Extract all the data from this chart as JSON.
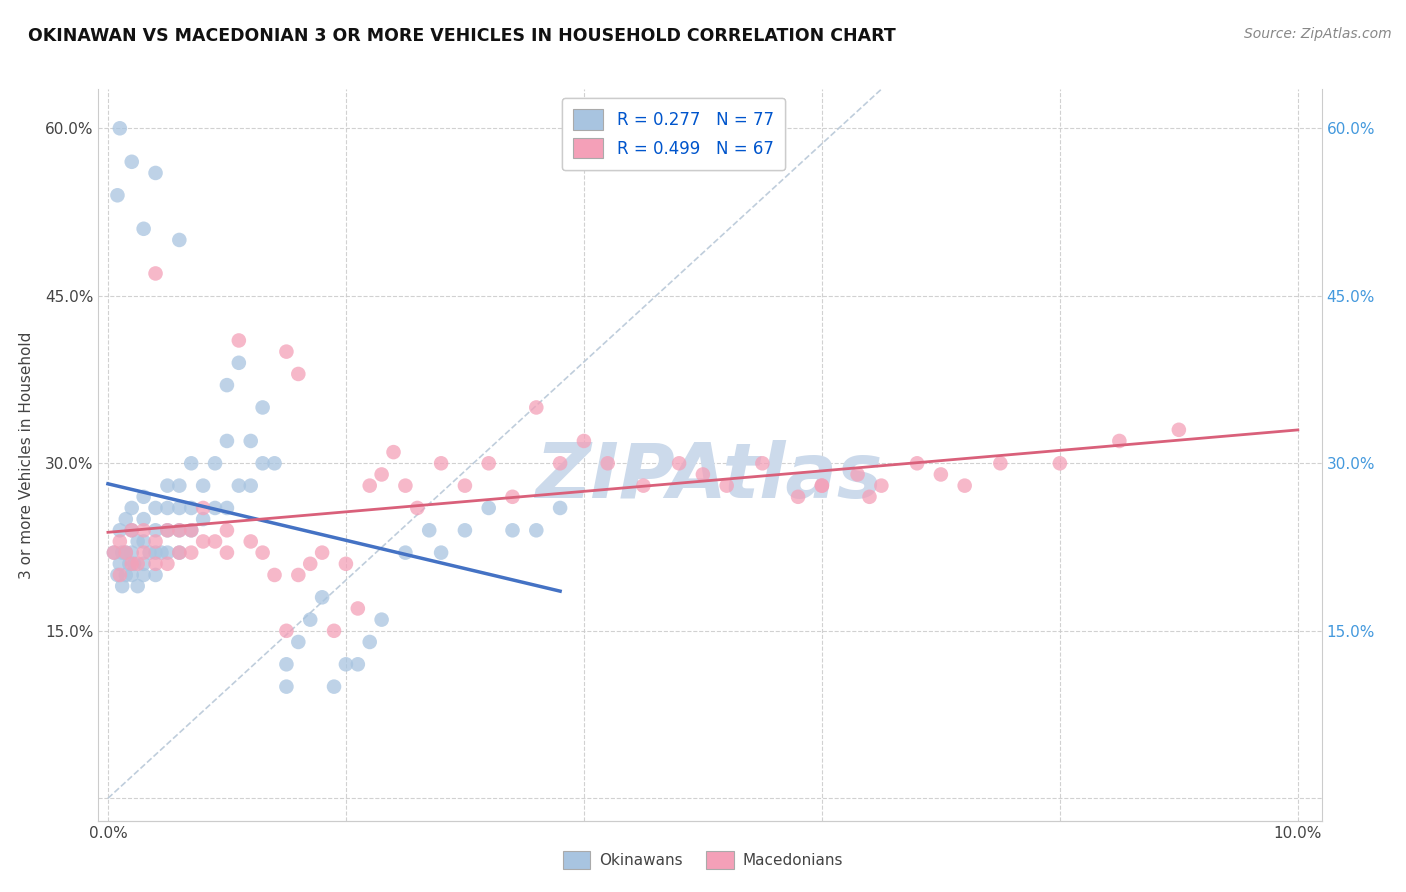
{
  "title": "OKINAWAN VS MACEDONIAN 3 OR MORE VEHICLES IN HOUSEHOLD CORRELATION CHART",
  "source": "Source: ZipAtlas.com",
  "xlim": [
    -0.0008,
    0.102
  ],
  "ylim": [
    -0.02,
    0.635
  ],
  "x_ticks": [
    0.0,
    0.02,
    0.04,
    0.06,
    0.08,
    0.1
  ],
  "x_tick_labels": [
    "0.0%",
    "",
    "",
    "",
    "",
    "10.0%"
  ],
  "y_ticks": [
    0.0,
    0.15,
    0.3,
    0.45,
    0.6
  ],
  "y_tick_labels_left": [
    "",
    "15.0%",
    "30.0%",
    "45.0%",
    "60.0%"
  ],
  "y_tick_labels_right": [
    "",
    "15.0%",
    "30.0%",
    "45.0%",
    "60.0%"
  ],
  "okinawan_color": "#a8c4e0",
  "macedonian_color": "#f4a0b8",
  "okinawan_line_color": "#4472c4",
  "macedonian_line_color": "#d9607a",
  "diagonal_color": "#b8c8d8",
  "watermark_color": "#ccdaeb",
  "ylabel": "3 or more Vehicles in Household",
  "legend_label1": "R = 0.277   N = 77",
  "legend_label2": "R = 0.499   N = 67",
  "bottom_legend_okinawans": "Okinawans",
  "bottom_legend_macedonians": "Macedonians",
  "okinawan_x": [
    0.0005,
    0.0008,
    0.001,
    0.001,
    0.0012,
    0.0012,
    0.0015,
    0.0015,
    0.0015,
    0.0018,
    0.002,
    0.002,
    0.002,
    0.002,
    0.0022,
    0.0025,
    0.0025,
    0.003,
    0.003,
    0.003,
    0.003,
    0.003,
    0.0035,
    0.004,
    0.004,
    0.004,
    0.004,
    0.0045,
    0.005,
    0.005,
    0.005,
    0.005,
    0.006,
    0.006,
    0.006,
    0.006,
    0.007,
    0.007,
    0.007,
    0.008,
    0.008,
    0.009,
    0.009,
    0.01,
    0.01,
    0.011,
    0.012,
    0.012,
    0.013,
    0.014,
    0.015,
    0.015,
    0.016,
    0.017,
    0.018,
    0.019,
    0.02,
    0.021,
    0.022,
    0.023,
    0.025,
    0.027,
    0.028,
    0.03,
    0.032,
    0.034,
    0.036,
    0.038,
    0.01,
    0.011,
    0.013,
    0.006,
    0.004,
    0.003,
    0.002,
    0.001,
    0.0008
  ],
  "okinawan_y": [
    0.22,
    0.2,
    0.21,
    0.24,
    0.19,
    0.22,
    0.2,
    0.22,
    0.25,
    0.21,
    0.2,
    0.22,
    0.24,
    0.26,
    0.21,
    0.19,
    0.23,
    0.2,
    0.21,
    0.23,
    0.25,
    0.27,
    0.22,
    0.2,
    0.22,
    0.24,
    0.26,
    0.22,
    0.22,
    0.24,
    0.26,
    0.28,
    0.22,
    0.24,
    0.26,
    0.28,
    0.24,
    0.26,
    0.3,
    0.25,
    0.28,
    0.26,
    0.3,
    0.26,
    0.32,
    0.28,
    0.28,
    0.32,
    0.3,
    0.3,
    0.1,
    0.12,
    0.14,
    0.16,
    0.18,
    0.1,
    0.12,
    0.12,
    0.14,
    0.16,
    0.22,
    0.24,
    0.22,
    0.24,
    0.26,
    0.24,
    0.24,
    0.26,
    0.37,
    0.39,
    0.35,
    0.5,
    0.56,
    0.51,
    0.57,
    0.6,
    0.54
  ],
  "macedonian_x": [
    0.0005,
    0.001,
    0.001,
    0.0015,
    0.002,
    0.002,
    0.0025,
    0.003,
    0.003,
    0.004,
    0.004,
    0.005,
    0.005,
    0.006,
    0.006,
    0.007,
    0.007,
    0.008,
    0.009,
    0.01,
    0.01,
    0.011,
    0.012,
    0.013,
    0.014,
    0.015,
    0.016,
    0.017,
    0.018,
    0.019,
    0.02,
    0.021,
    0.022,
    0.023,
    0.024,
    0.025,
    0.026,
    0.028,
    0.03,
    0.032,
    0.034,
    0.036,
    0.038,
    0.04,
    0.042,
    0.045,
    0.048,
    0.05,
    0.052,
    0.055,
    0.058,
    0.06,
    0.063,
    0.065,
    0.068,
    0.07,
    0.072,
    0.075,
    0.08,
    0.085,
    0.09,
    0.06,
    0.064,
    0.015,
    0.016,
    0.004,
    0.008
  ],
  "macedonian_y": [
    0.22,
    0.2,
    0.23,
    0.22,
    0.21,
    0.24,
    0.21,
    0.22,
    0.24,
    0.21,
    0.23,
    0.21,
    0.24,
    0.22,
    0.24,
    0.22,
    0.24,
    0.23,
    0.23,
    0.22,
    0.24,
    0.41,
    0.23,
    0.22,
    0.2,
    0.15,
    0.2,
    0.21,
    0.22,
    0.15,
    0.21,
    0.17,
    0.28,
    0.29,
    0.31,
    0.28,
    0.26,
    0.3,
    0.28,
    0.3,
    0.27,
    0.35,
    0.3,
    0.32,
    0.3,
    0.28,
    0.3,
    0.29,
    0.28,
    0.3,
    0.27,
    0.28,
    0.29,
    0.28,
    0.3,
    0.29,
    0.28,
    0.3,
    0.3,
    0.32,
    0.33,
    0.28,
    0.27,
    0.4,
    0.38,
    0.47,
    0.26
  ]
}
